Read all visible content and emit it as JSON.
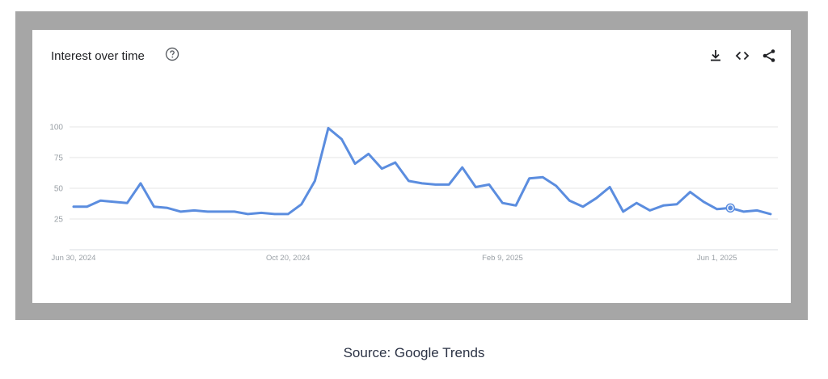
{
  "card": {
    "title": "Interest over time"
  },
  "icons": {
    "help": "help-circle-icon",
    "download": "download-icon",
    "embed": "code-embed-icon",
    "share": "share-icon"
  },
  "caption": "Source: Google Trends",
  "colors": {
    "line": "#5b8ddf",
    "grid": "#e6e6e6",
    "tick": "#9aa0a6",
    "frame": "#a6a6a6"
  },
  "chart_data": {
    "type": "line",
    "title": "",
    "xlabel": "",
    "ylabel": "",
    "ylim": [
      0,
      100
    ],
    "yticks": [
      25,
      50,
      75,
      100
    ],
    "grid": true,
    "xtick_labels": [
      "Jun 30, 2024",
      "Oct 20, 2024",
      "Feb 9, 2025",
      "Jun 1, 2025"
    ],
    "xtick_index": [
      0,
      16,
      32,
      48
    ],
    "values": [
      35,
      35,
      40,
      39,
      38,
      54,
      35,
      34,
      31,
      32,
      31,
      31,
      31,
      29,
      30,
      29,
      29,
      37,
      56,
      99,
      90,
      70,
      78,
      66,
      71,
      56,
      54,
      53,
      53,
      67,
      51,
      53,
      38,
      36,
      58,
      59,
      52,
      40,
      35,
      42,
      51,
      31,
      38,
      32,
      36,
      37,
      47,
      39,
      33,
      34,
      31,
      32,
      29
    ],
    "highlight_index": 49
  }
}
